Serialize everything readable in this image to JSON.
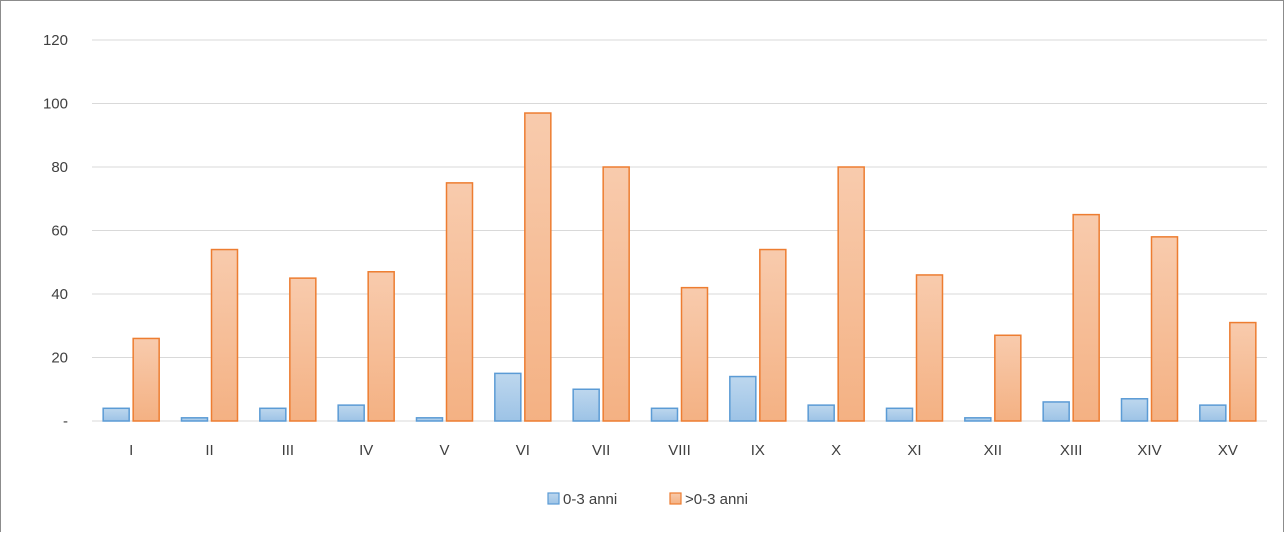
{
  "chart_data": {
    "type": "bar",
    "title": "",
    "xlabel": "",
    "ylabel": "",
    "categories": [
      "I",
      "II",
      "III",
      "IV",
      "V",
      "VI",
      "VII",
      "VIII",
      "IX",
      "X",
      "XI",
      "XII",
      "XIII",
      "XIV",
      "XV"
    ],
    "series": [
      {
        "name": "0-3 anni",
        "values": [
          4,
          1,
          4,
          5,
          1,
          15,
          10,
          4,
          14,
          5,
          4,
          1,
          6,
          7,
          5
        ],
        "fill_top": "#bdd7ee",
        "fill_bottom": "#9dc3e6",
        "stroke": "#5b9bd5"
      },
      {
        "name": ">0-3 anni",
        "values": [
          26,
          54,
          45,
          47,
          75,
          97,
          80,
          42,
          54,
          80,
          46,
          27,
          65,
          58,
          31
        ],
        "fill_top": "#f8cbad",
        "fill_bottom": "#f4b183",
        "stroke": "#ed7d31"
      }
    ],
    "ylim": [
      0,
      120
    ],
    "yticks": [
      0,
      20,
      40,
      60,
      80,
      100,
      120
    ],
    "ytick_labels": [
      "-",
      "20",
      "40",
      "60",
      "80",
      "100",
      "120"
    ],
    "grid": true,
    "grid_color": "#d9d9d9",
    "legend": "bottom-center"
  }
}
